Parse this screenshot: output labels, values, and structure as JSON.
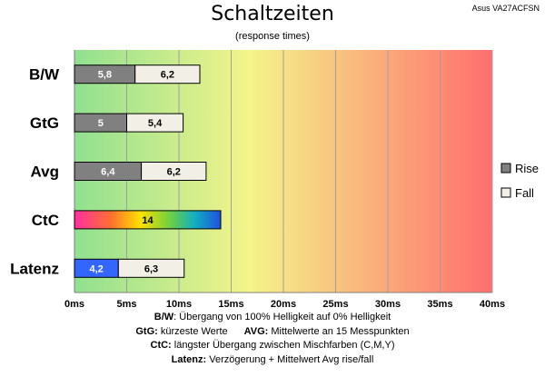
{
  "chart_data": {
    "type": "bar",
    "title": "Schaltzeiten",
    "subtitle": "(response times)",
    "model": "Asus VA27ACFSN",
    "xlim": [
      0,
      40
    ],
    "x_ticks": [
      "0ms",
      "5ms",
      "10ms",
      "15ms",
      "20ms",
      "25ms",
      "30ms",
      "35ms",
      "40ms"
    ],
    "x_tick_values": [
      0,
      5,
      10,
      15,
      20,
      25,
      30,
      35,
      40
    ],
    "grid": true,
    "stacked": true,
    "legend_position": "right",
    "categories": [
      "B/W",
      "GtG",
      "Avg",
      "CtC",
      "Latenz"
    ],
    "series": [
      {
        "name": "Rise",
        "color": "#808080",
        "values": [
          5.8,
          5,
          6.4,
          null,
          null
        ],
        "labels": [
          "5,8",
          "5",
          "6,4",
          "",
          ""
        ]
      },
      {
        "name": "Fall",
        "color": "#f2f0e6",
        "values": [
          6.2,
          5.4,
          6.2,
          null,
          6.3
        ],
        "labels": [
          "6,2",
          "5,4",
          "6,2",
          "",
          "6,3"
        ]
      }
    ],
    "single_bars": [
      {
        "category": "CtC",
        "value": 14,
        "label": "14",
        "style": "rainbow"
      },
      {
        "category": "Latenz",
        "value": 4.2,
        "label": "4,2",
        "color": "#3366ff"
      }
    ],
    "background_gradient": [
      "#90e090",
      "#f4f48a",
      "#ff6e6e"
    ]
  },
  "notes": {
    "bw_key": "B/W",
    "bw_text": ":  Übergang von 100% Helligkeit auf 0% Helligkeit",
    "gtg_key": "GtG:",
    "gtg_text": " kürzeste  Werte",
    "avg_key": "AVG:",
    "avg_text": " Mittelwerte  an 15 Messpunkten",
    "ctc_key": "CtC:",
    "ctc_text": " längster Übergang  zwischen Mischfarben (C,M,Y)",
    "lat_key": "Latenz:",
    "lat_text": " Verzögerung  + Mittelwert  Avg rise/fall"
  }
}
